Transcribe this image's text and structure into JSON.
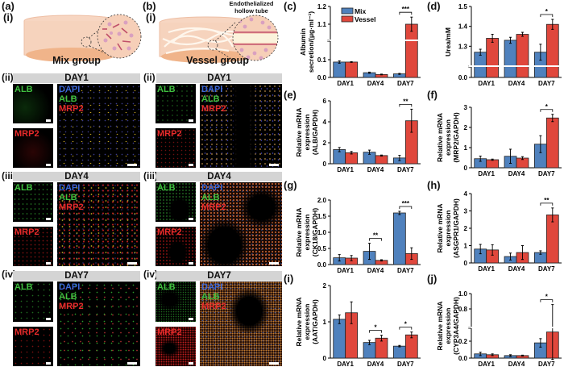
{
  "schematic": {
    "panel_a": {
      "label": "(a)",
      "sub": "(i)",
      "caption": "Mix group"
    },
    "panel_b": {
      "label": "(b)",
      "sub": "(i)",
      "caption": "Vessel group",
      "callout": "Endothelialized hollow tube"
    }
  },
  "micrographs": {
    "mix": [
      {
        "sub": "(ii)",
        "day": "DAY1"
      },
      {
        "sub": "(iii)",
        "day": "DAY4"
      },
      {
        "sub": "(iv)",
        "day": "DAY7"
      }
    ],
    "vessel": [
      {
        "sub": "(ii)",
        "day": "DAY1"
      },
      {
        "sub": "(iii)",
        "day": "DAY4"
      },
      {
        "sub": "(iv)",
        "day": "DAY7"
      }
    ],
    "channels": {
      "alb": "ALB",
      "mrp2": "MRP2",
      "dapi": "DAPI"
    },
    "colors": {
      "alb": "#3fbf3f",
      "mrp2": "#e82b2b",
      "dapi": "#3a66d6"
    }
  },
  "legend": {
    "mix": "Mix",
    "vessel": "Vessel"
  },
  "colors": {
    "mix": "#4f81bd",
    "vessel": "#e0473c"
  },
  "chart_data": [
    {
      "panel": "(c)",
      "type": "bar",
      "title": "",
      "ylabel": "Albumin secretion/(μg·ml⁻¹)",
      "xlabel": "",
      "categories": [
        "DAY1",
        "DAY4",
        "DAY7"
      ],
      "yticks": [
        "0.0",
        "0.1",
        "1.1",
        "1.2"
      ],
      "axis_break": true,
      "series": [
        {
          "name": "Mix",
          "values": [
            0.13,
            0.04,
            0.03
          ],
          "errors": [
            0.01,
            0.005,
            0.004
          ]
        },
        {
          "name": "Vessel",
          "values": [
            0.13,
            0.025,
            1.1
          ],
          "errors": [
            0.003,
            0.003,
            0.04
          ]
        }
      ],
      "significance": [
        {
          "category": "DAY7",
          "label": "***"
        }
      ],
      "legend_position": "upper left"
    },
    {
      "panel": "(d)",
      "type": "bar",
      "ylabel": "Urea/mM",
      "xlabel": "",
      "categories": [
        "DAY1",
        "DAY4",
        "DAY7"
      ],
      "yticks": [
        "0.0",
        "1.3",
        "1.4",
        "1.5"
      ],
      "axis_break": true,
      "series": [
        {
          "name": "Mix",
          "values": [
            1.27,
            1.33,
            1.27
          ],
          "errors": [
            0.015,
            0.015,
            0.04
          ]
        },
        {
          "name": "Vessel",
          "values": [
            1.34,
            1.36,
            1.41
          ],
          "errors": [
            0.02,
            0.01,
            0.025
          ]
        }
      ],
      "significance": [
        {
          "category": "DAY7",
          "label": "*"
        }
      ]
    },
    {
      "panel": "(e)",
      "type": "bar",
      "ylabel": "Relative mRNA expression (ALB/GAPDH)",
      "categories": [
        "DAY1",
        "DAY4",
        "DAY7"
      ],
      "ylim": [
        0,
        6
      ],
      "yticks": [
        "0",
        "2",
        "4",
        "6"
      ],
      "series": [
        {
          "name": "Mix",
          "values": [
            1.35,
            1.1,
            0.55
          ],
          "errors": [
            0.2,
            0.2,
            0.25
          ]
        },
        {
          "name": "Vessel",
          "values": [
            1.05,
            0.78,
            4.1
          ],
          "errors": [
            0.12,
            0.05,
            1.1
          ]
        }
      ],
      "significance": [
        {
          "category": "DAY7",
          "label": "**"
        }
      ]
    },
    {
      "panel": "(f)",
      "type": "bar",
      "ylabel": "Relative mRNA expression (MRP2/GAPDH)",
      "categories": [
        "DAY1",
        "DAY4",
        "DAY7"
      ],
      "ylim": [
        0,
        3
      ],
      "yticks": [
        "0",
        "1",
        "2",
        "3"
      ],
      "series": [
        {
          "name": "Mix",
          "values": [
            0.45,
            0.57,
            1.17
          ],
          "errors": [
            0.13,
            0.35,
            0.42
          ]
        },
        {
          "name": "Vessel",
          "values": [
            0.4,
            0.48,
            2.47
          ],
          "errors": [
            0.03,
            0.07,
            0.18
          ]
        }
      ],
      "significance": [
        {
          "category": "DAY7",
          "label": "*"
        }
      ]
    },
    {
      "panel": "(g)",
      "type": "bar",
      "ylabel": "Relative mRNA expression (CK18/GAPDH)",
      "categories": [
        "DAY1",
        "DAY4",
        "DAY7"
      ],
      "ylim": [
        0,
        2.0
      ],
      "yticks": [
        "0.0",
        "0.5",
        "1.0",
        "1.5",
        "2.0"
      ],
      "series": [
        {
          "name": "Mix",
          "values": [
            0.21,
            0.41,
            1.6
          ],
          "errors": [
            0.1,
            0.25,
            0.05
          ]
        },
        {
          "name": "Vessel",
          "values": [
            0.2,
            0.13,
            0.34
          ],
          "errors": [
            0.08,
            0.02,
            0.18
          ]
        }
      ],
      "significance": [
        {
          "category": "DAY4",
          "label": "**"
        },
        {
          "category": "DAY7",
          "label": "***"
        }
      ]
    },
    {
      "panel": "(h)",
      "type": "bar",
      "ylabel": "Relative mRNA expression (ASGPR1/GAPDH)",
      "categories": [
        "DAY1",
        "DAY4",
        "DAY7"
      ],
      "ylim": [
        0,
        4
      ],
      "yticks": [
        "0",
        "1",
        "2",
        "3",
        "4"
      ],
      "series": [
        {
          "name": "Mix",
          "values": [
            0.8,
            0.37,
            0.6
          ],
          "errors": [
            0.27,
            0.2,
            0.1
          ]
        },
        {
          "name": "Vessel",
          "values": [
            0.75,
            0.6,
            2.77
          ],
          "errors": [
            0.3,
            0.4,
            0.4
          ]
        }
      ],
      "significance": [
        {
          "category": "DAY7",
          "label": "**"
        }
      ]
    },
    {
      "panel": "(i)",
      "type": "bar",
      "ylabel": "Relative mRNA expression (AAT/GAPDH)",
      "categories": [
        "DAY1",
        "DAY4",
        "DAY7"
      ],
      "ylim": [
        0,
        2
      ],
      "yticks": [
        "0",
        "1",
        "2"
      ],
      "series": [
        {
          "name": "Mix",
          "values": [
            1.07,
            0.43,
            0.33
          ],
          "errors": [
            0.12,
            0.06,
            0.02
          ]
        },
        {
          "name": "Vessel",
          "values": [
            1.25,
            0.55,
            0.64
          ],
          "errors": [
            0.3,
            0.08,
            0.08
          ]
        }
      ],
      "significance": [
        {
          "category": "DAY4",
          "label": "*"
        },
        {
          "category": "DAY7",
          "label": "*"
        }
      ]
    },
    {
      "panel": "(j)",
      "type": "bar",
      "ylabel": "Relative mRNA expression (CYP3A4/GAPDH)",
      "categories": [
        "DAY1",
        "DAY4",
        "DAY7"
      ],
      "yticks": [
        "0.0",
        "0.2",
        "0.8",
        "1.0"
      ],
      "axis_break": true,
      "series": [
        {
          "name": "Mix",
          "values": [
            0.05,
            0.03,
            0.18
          ],
          "errors": [
            0.02,
            0.01,
            0.05
          ]
        },
        {
          "name": "Vessel",
          "values": [
            0.04,
            0.03,
            0.72
          ],
          "errors": [
            0.01,
            0.005,
            0.2
          ]
        }
      ],
      "significance": [
        {
          "category": "DAY7",
          "label": "*"
        }
      ]
    }
  ]
}
